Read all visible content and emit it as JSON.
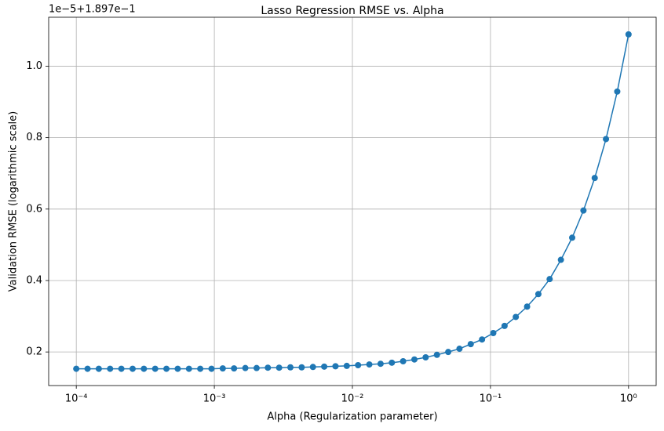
{
  "chart_data": {
    "type": "line",
    "title": "Lasso Regression RMSE vs. Alpha",
    "x_label": "Alpha (Regularization parameter)",
    "y_label": "Validation RMSE (logarithmic scale)",
    "y_offset_label": "1e−5+1.897e−1",
    "x_scale": "log",
    "grid": true,
    "marker": "circle",
    "xlim": [
      6.31e-05,
      1.585
    ],
    "ylim": [
      0.106,
      1.137
    ],
    "xticks": [
      {
        "value": 0.0001,
        "label": "10⁻⁴"
      },
      {
        "value": 0.001,
        "label": "10⁻³"
      },
      {
        "value": 0.01,
        "label": "10⁻²"
      },
      {
        "value": 0.1,
        "label": "10⁻¹"
      },
      {
        "value": 1,
        "label": "10⁰"
      }
    ],
    "yticks": [
      0.2,
      0.4,
      0.6,
      0.8,
      {
        "value": 1.0,
        "label": "1.0"
      }
    ],
    "x": [
      0.0001,
      0.0001207,
      0.0001456,
      0.0001758,
      0.0002121,
      0.000256,
      0.0003089,
      0.0003728,
      0.0004498,
      0.0005429,
      0.0006551,
      0.0007906,
      0.0009541,
      0.001151,
      0.001389,
      0.001677,
      0.002024,
      0.002442,
      0.002947,
      0.003556,
      0.004292,
      0.005179,
      0.006251,
      0.007543,
      0.009103,
      0.01099,
      0.01326,
      0.016,
      0.01931,
      0.0233,
      0.02812,
      0.03393,
      0.04095,
      0.04942,
      0.05964,
      0.07197,
      0.08685,
      0.1048,
      0.1265,
      0.1526,
      0.1842,
      0.2223,
      0.2683,
      0.3237,
      0.3907,
      0.4715,
      0.569,
      0.6866,
      0.8286,
      1.0
    ],
    "series": [
      {
        "color": "#1f77b4",
        "values": [
          0.153,
          0.153,
          0.153,
          0.153,
          0.153,
          0.153,
          0.153,
          0.153,
          0.153,
          0.153,
          0.153,
          0.153,
          0.153,
          0.154,
          0.154,
          0.155,
          0.155,
          0.156,
          0.156,
          0.157,
          0.157,
          0.158,
          0.159,
          0.16,
          0.161,
          0.163,
          0.165,
          0.167,
          0.17,
          0.174,
          0.179,
          0.185,
          0.192,
          0.2,
          0.209,
          0.222,
          0.235,
          0.253,
          0.273,
          0.298,
          0.327,
          0.362,
          0.404,
          0.458,
          0.52,
          0.596,
          0.687,
          0.796,
          0.929,
          1.089
        ]
      }
    ]
  }
}
